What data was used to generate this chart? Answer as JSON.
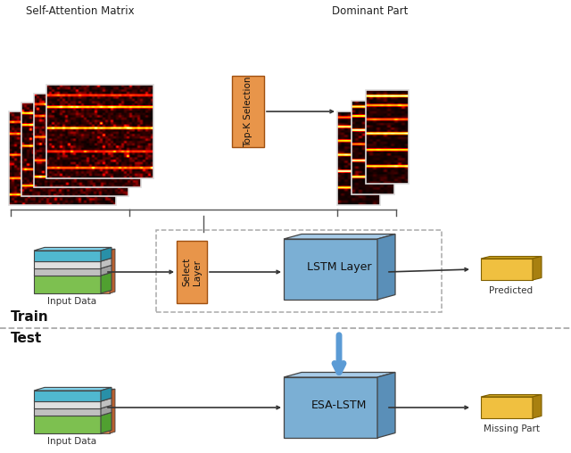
{
  "bg_color": "#ffffff",
  "self_attention_label": "Self-Attention Matrix",
  "dominant_label": "Dominant Part",
  "train_label": "Train",
  "test_label": "Test",
  "input_data_label": "Input Data",
  "predicted_label": "Predicted",
  "missing_label": "Missing Part",
  "lstm_label": "LSTM Layer",
  "esa_lstm_label": "ESA-LSTM",
  "select_layer_label": "Select\nLayer",
  "topk_label": "Top-K Selection",
  "colors": {
    "orange_box": "#E8954A",
    "blue_front": "#7BAFD4",
    "blue_top": "#A8CCE8",
    "blue_side": "#5A8FB8",
    "yellow_front": "#F0C040",
    "yellow_top": "#C8A020",
    "yellow_side": "#A88010",
    "green_front": "#7DC050",
    "green_top": "#9AD870",
    "green_side": "#50A030",
    "cyan_front": "#50B8D0",
    "cyan_top": "#80D0E8",
    "cyan_side": "#2890A8",
    "gray_front": "#C0C0C0",
    "gray_top": "#D8D8D8",
    "gray_side": "#A0A0A0",
    "lgray_front": "#E0E0E0",
    "lgray_top": "#F0F0F0",
    "lgray_side": "#C0C0C0",
    "orange_front": "#D8864A",
    "orange_top": "#E8A860",
    "orange_side": "#B86030"
  }
}
